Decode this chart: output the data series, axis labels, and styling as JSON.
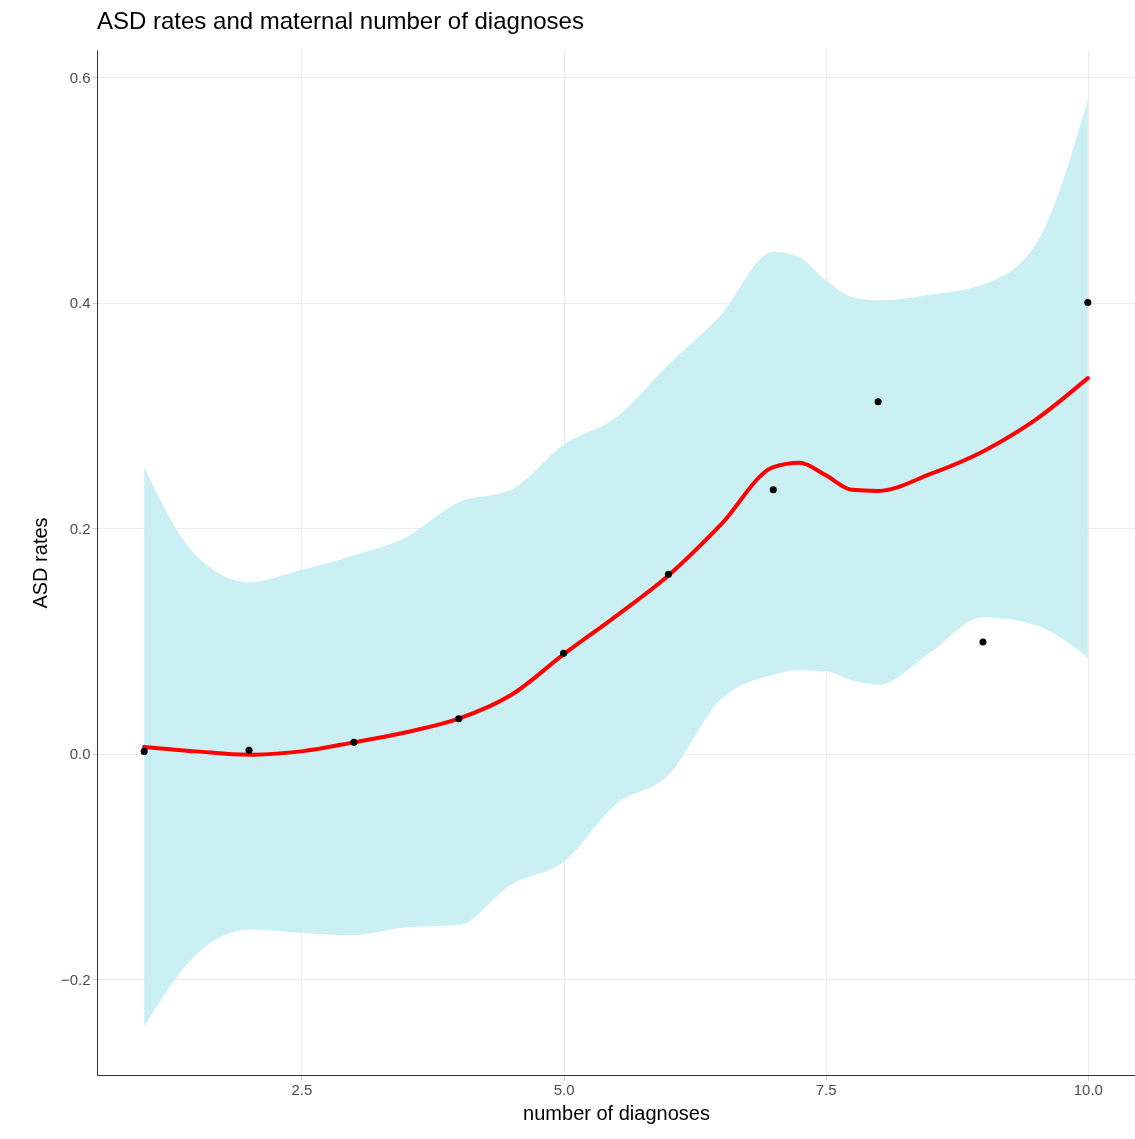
{
  "chart_data": {
    "type": "scatter",
    "title": "ASD rates and maternal number of diagnoses",
    "xlabel": "number of diagnoses",
    "ylabel": "ASD rates",
    "xlim": [
      0.55,
      10.45
    ],
    "ylim": [
      -0.285,
      0.624
    ],
    "xticks": [
      {
        "value": 2.5,
        "label": "2.5"
      },
      {
        "value": 5,
        "label": "5.0"
      },
      {
        "value": 7.5,
        "label": "7.5"
      },
      {
        "value": 10,
        "label": "10.0"
      }
    ],
    "yticks": [
      {
        "value": -0.2,
        "label": "−0.2"
      },
      {
        "value": 0,
        "label": "0.0"
      },
      0.2,
      0.4,
      0.6
    ],
    "grid": true,
    "marker": "circle",
    "series": [
      {
        "type": "scatter",
        "color": "#000000",
        "x": [
          1,
          2,
          3,
          4,
          5,
          6,
          7,
          8,
          9,
          10
        ],
        "values": [
          0.002,
          0.003,
          0.01,
          0.031,
          0.089,
          0.159,
          0.234,
          0.312,
          0.099,
          0.4
        ]
      },
      {
        "type": "line",
        "marker": "none",
        "color": "#ff0000",
        "x": [
          1,
          1.5,
          2,
          2.5,
          3,
          3.5,
          4,
          4.5,
          5,
          5.5,
          6,
          6.5,
          7,
          7.25,
          7.5,
          7.75,
          8,
          8.5,
          9,
          9.5,
          10
        ],
        "values": [
          0.006,
          0.002,
          -0.001,
          0.002,
          0.01,
          0.019,
          0.031,
          0.052,
          0.088,
          0.122,
          0.158,
          0.203,
          0.254,
          0.258,
          0.247,
          0.234,
          0.233,
          0.248,
          0.268,
          0.296,
          0.333
        ],
        "lower": [
          -0.242,
          -0.178,
          -0.156,
          -0.159,
          -0.161,
          -0.154,
          -0.152,
          -0.116,
          -0.096,
          -0.045,
          -0.019,
          0.048,
          0.07,
          0.074,
          0.073,
          0.065,
          0.061,
          0.09,
          0.121,
          0.114,
          0.085
        ],
        "upper": [
          0.254,
          0.175,
          0.152,
          0.163,
          0.176,
          0.192,
          0.223,
          0.234,
          0.274,
          0.298,
          0.345,
          0.389,
          0.445,
          0.44,
          0.42,
          0.405,
          0.402,
          0.407,
          0.416,
          0.451,
          0.58
        ]
      }
    ]
  }
}
